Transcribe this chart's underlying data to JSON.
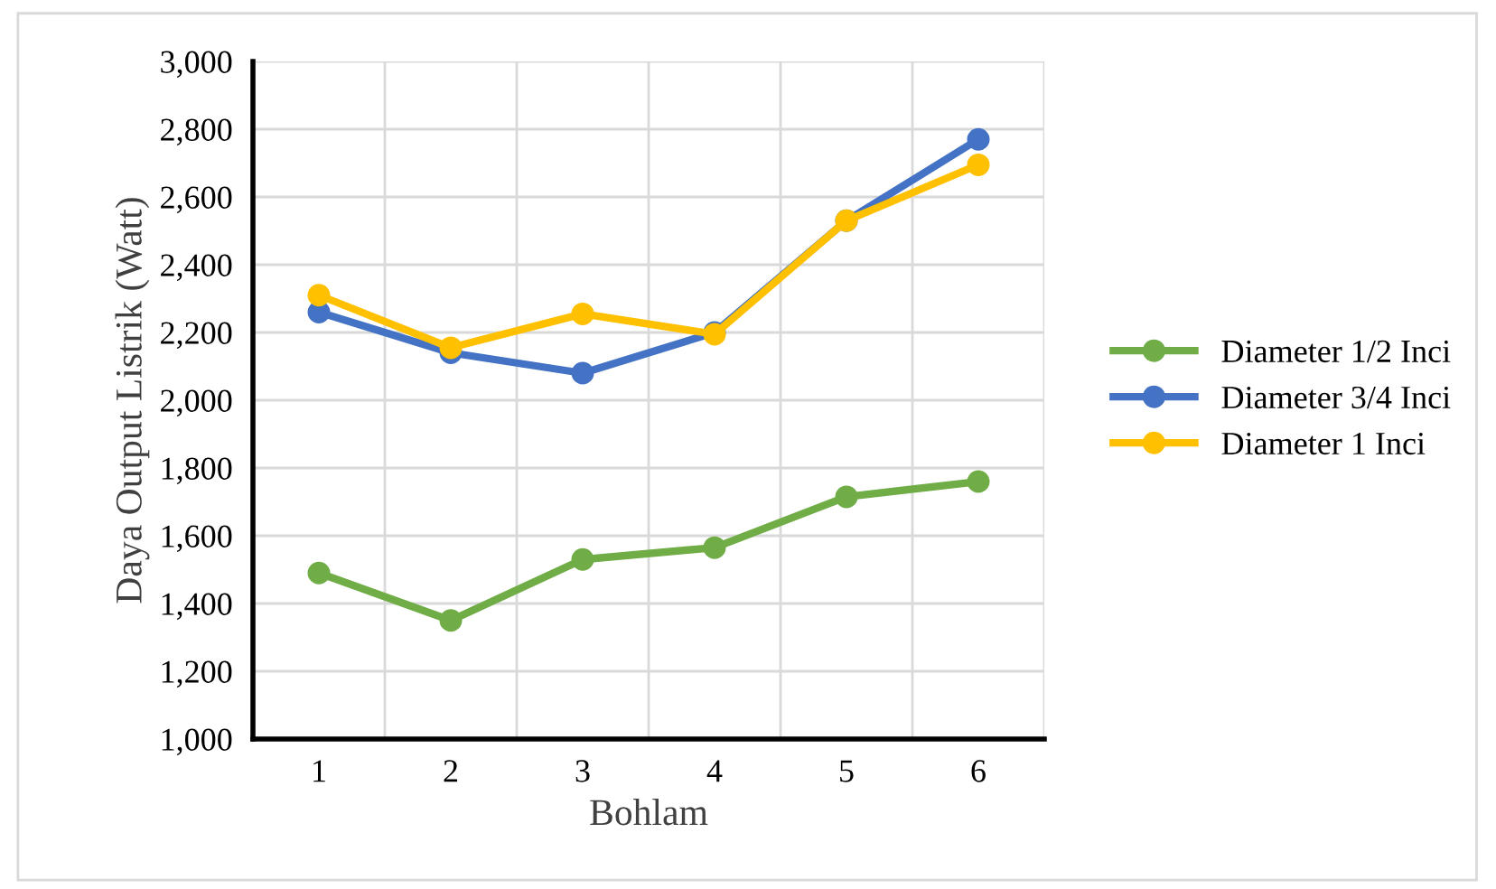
{
  "chart_data": {
    "type": "line",
    "xlabel": "Bohlam",
    "ylabel": "Daya Output Listrik (Watt)",
    "categories": [
      "1",
      "2",
      "3",
      "4",
      "5",
      "6"
    ],
    "series": [
      {
        "name": "Diameter 1/2 Inci",
        "color": "#70ad47",
        "values": [
          1490,
          1350,
          1530,
          1565,
          1715,
          1760
        ]
      },
      {
        "name": "Diameter 3/4 Inci",
        "color": "#4472c4",
        "values": [
          2260,
          2140,
          2080,
          2200,
          2530,
          2770
        ]
      },
      {
        "name": "Diameter 1 Inci",
        "color": "#ffc000",
        "values": [
          2310,
          2155,
          2255,
          2195,
          2530,
          2695
        ]
      }
    ],
    "ylim": [
      1000,
      3000
    ],
    "yticks": [
      {
        "value": 1000,
        "label": "1,000"
      },
      {
        "value": 1200,
        "label": "1,200"
      },
      {
        "value": 1400,
        "label": "1,400"
      },
      {
        "value": 1600,
        "label": "1,600"
      },
      {
        "value": 1800,
        "label": "1,800"
      },
      {
        "value": 2000,
        "label": "2,000"
      },
      {
        "value": 2200,
        "label": "2,200"
      },
      {
        "value": 2400,
        "label": "2,400"
      },
      {
        "value": 2600,
        "label": "2,600"
      },
      {
        "value": 2800,
        "label": "2,800"
      },
      {
        "value": 3000,
        "label": "3,000"
      }
    ],
    "grid": true,
    "legend": "right",
    "marker": "circle",
    "line_style": "solid"
  }
}
